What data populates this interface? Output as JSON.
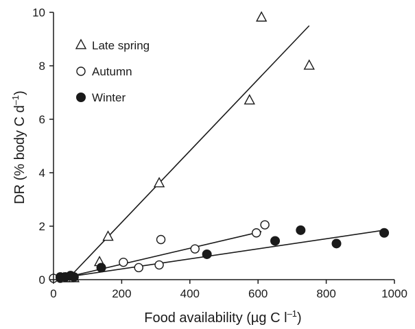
{
  "chart_data": {
    "type": "scatter",
    "xlabel": {
      "main": "Food availability (µg C l",
      "sup": "–1",
      "close": ")"
    },
    "ylabel": {
      "main": "DR (% body C d",
      "sup": "–1",
      "close": ")"
    },
    "xlim": [
      0,
      1000
    ],
    "ylim": [
      0,
      10
    ],
    "x_ticks": [
      "0",
      "200",
      "400",
      "600",
      "800",
      "1000"
    ],
    "y_ticks": [
      "0",
      "2",
      "4",
      "6",
      "8",
      "10"
    ],
    "grid": false,
    "legend_position": "top-left",
    "series": [
      {
        "name": "Late spring",
        "marker": "open-triangle",
        "points": [
          {
            "x": 30,
            "y": 0.05
          },
          {
            "x": 45,
            "y": 0.05
          },
          {
            "x": 60,
            "y": 0.05
          },
          {
            "x": 135,
            "y": 0.65
          },
          {
            "x": 160,
            "y": 1.6
          },
          {
            "x": 310,
            "y": 3.6
          },
          {
            "x": 575,
            "y": 6.7
          },
          {
            "x": 610,
            "y": 9.8
          },
          {
            "x": 750,
            "y": 8.0
          }
        ],
        "fit": {
          "x": [
            40,
            750
          ],
          "y": [
            0.0,
            9.5
          ]
        }
      },
      {
        "name": "Autumn",
        "marker": "open-circle",
        "points": [
          {
            "x": 0,
            "y": 0.05
          },
          {
            "x": 20,
            "y": 0.05
          },
          {
            "x": 35,
            "y": 0.1
          },
          {
            "x": 50,
            "y": 0.1
          },
          {
            "x": 140,
            "y": 0.45
          },
          {
            "x": 205,
            "y": 0.65
          },
          {
            "x": 250,
            "y": 0.45
          },
          {
            "x": 310,
            "y": 0.55
          },
          {
            "x": 315,
            "y": 1.5
          },
          {
            "x": 415,
            "y": 1.15
          },
          {
            "x": 595,
            "y": 1.75
          },
          {
            "x": 620,
            "y": 2.05
          }
        ],
        "fit": {
          "x": [
            40,
            610
          ],
          "y": [
            0.1,
            1.8
          ]
        }
      },
      {
        "name": "Winter",
        "marker": "filled-circle",
        "points": [
          {
            "x": 20,
            "y": 0.1
          },
          {
            "x": 35,
            "y": 0.1
          },
          {
            "x": 50,
            "y": 0.15
          },
          {
            "x": 60,
            "y": 0.1
          },
          {
            "x": 140,
            "y": 0.45
          },
          {
            "x": 450,
            "y": 0.95
          },
          {
            "x": 650,
            "y": 1.45
          },
          {
            "x": 725,
            "y": 1.85
          },
          {
            "x": 830,
            "y": 1.35
          },
          {
            "x": 970,
            "y": 1.75
          }
        ],
        "fit": {
          "x": [
            40,
            970
          ],
          "y": [
            0.1,
            1.85
          ]
        }
      }
    ],
    "colors": {
      "ink": "#1a1a1a",
      "background": "#ffffff"
    }
  }
}
